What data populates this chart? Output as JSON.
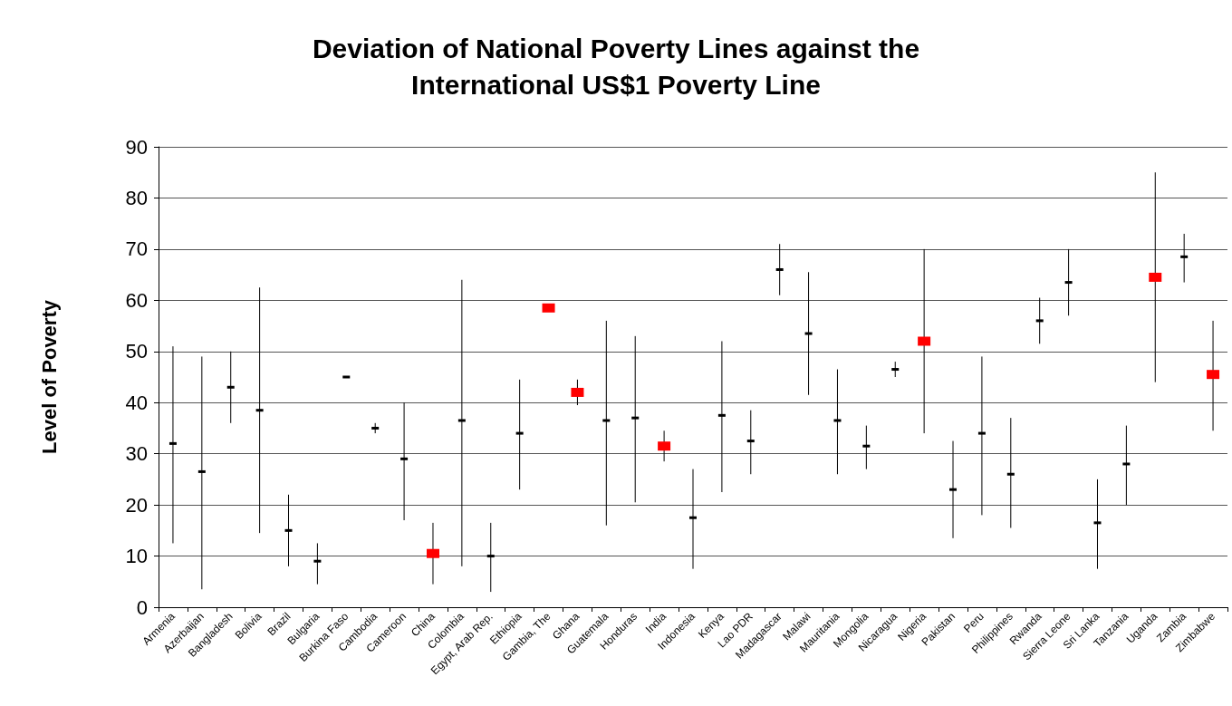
{
  "chart_data": {
    "type": "scatter",
    "title": "Deviation of National Poverty Lines against the\nInternational US$1 Poverty Line",
    "ylabel": "Level of Poverty",
    "categories": [
      "Armenia",
      "Azerbaijan",
      "Bangladesh",
      "Bolivia",
      "Brazil",
      "Bulgaria",
      "Burkina Faso",
      "Cambodia",
      "Cameroon",
      "China",
      "Colombia",
      "Egypt, Arab Rep.",
      "Ethiopia",
      "Gambia, The",
      "Ghana",
      "Guatemala",
      "Honduras",
      "India",
      "Indonesia",
      "Kenya",
      "Lao PDR",
      "Madagascar",
      "Malawi",
      "Mauritania",
      "Mongolia",
      "Nicaragua",
      "Nigeria",
      "Pakistan",
      "Peru",
      "Philippines",
      "Rwanda",
      "Sierra Leone",
      "Sri Lanka",
      "Tanzania",
      "Uganda",
      "Zambia",
      "Zimbabwe"
    ],
    "series": [
      {
        "color": "#000000",
        "values": [
          32,
          26.5,
          43,
          38.5,
          15,
          9,
          45,
          35,
          29,
          null,
          36.5,
          10,
          34,
          null,
          null,
          36.5,
          37,
          null,
          17.5,
          37.5,
          32.5,
          66,
          53.5,
          36.5,
          31.5,
          46.5,
          null,
          23,
          34,
          26,
          56,
          63.5,
          16.5,
          28,
          null,
          68.5,
          null
        ],
        "errors": [
          [
            12.5,
            51
          ],
          [
            3.5,
            49
          ],
          [
            36,
            50
          ],
          [
            14.5,
            62.5
          ],
          [
            8,
            22
          ],
          [
            4.5,
            12.5
          ],
          null,
          [
            34,
            36
          ],
          [
            17,
            40
          ],
          null,
          [
            8,
            64
          ],
          [
            3,
            16.5
          ],
          [
            23,
            44.5
          ],
          null,
          null,
          [
            16,
            56
          ],
          [
            20.5,
            53
          ],
          null,
          [
            7.5,
            27
          ],
          [
            22.5,
            52
          ],
          [
            26,
            38.5
          ],
          [
            61,
            71
          ],
          [
            41.5,
            65.5
          ],
          [
            26,
            46.5
          ],
          [
            27,
            35.5
          ],
          [
            45,
            48
          ],
          null,
          [
            13.5,
            32.5
          ],
          [
            18,
            49
          ],
          [
            15.5,
            37
          ],
          [
            51.5,
            60.5
          ],
          [
            57,
            70
          ],
          [
            7.5,
            25
          ],
          [
            20,
            35.5
          ],
          null,
          [
            63.5,
            73
          ],
          null
        ]
      },
      {
        "color": "#ff0000",
        "values": [
          null,
          null,
          null,
          null,
          null,
          null,
          null,
          null,
          null,
          10.5,
          null,
          null,
          null,
          58.5,
          42,
          null,
          null,
          31.5,
          null,
          null,
          null,
          null,
          null,
          null,
          null,
          null,
          52,
          null,
          null,
          null,
          null,
          null,
          null,
          null,
          64.5,
          null,
          45.5
        ],
        "errors": [
          null,
          null,
          null,
          null,
          null,
          null,
          null,
          null,
          null,
          [
            4.5,
            16.5
          ],
          null,
          null,
          null,
          null,
          [
            39.5,
            44.5
          ],
          null,
          null,
          [
            28.5,
            34.5
          ],
          null,
          null,
          null,
          null,
          null,
          null,
          null,
          null,
          [
            34,
            70
          ],
          null,
          null,
          null,
          null,
          null,
          null,
          null,
          [
            44,
            85
          ],
          null,
          [
            34.5,
            56
          ]
        ]
      }
    ],
    "marker": "square",
    "ylim": [
      0,
      90
    ],
    "yticks": [
      0,
      10,
      20,
      30,
      40,
      50,
      60,
      70,
      80,
      90
    ],
    "grid": "y"
  }
}
